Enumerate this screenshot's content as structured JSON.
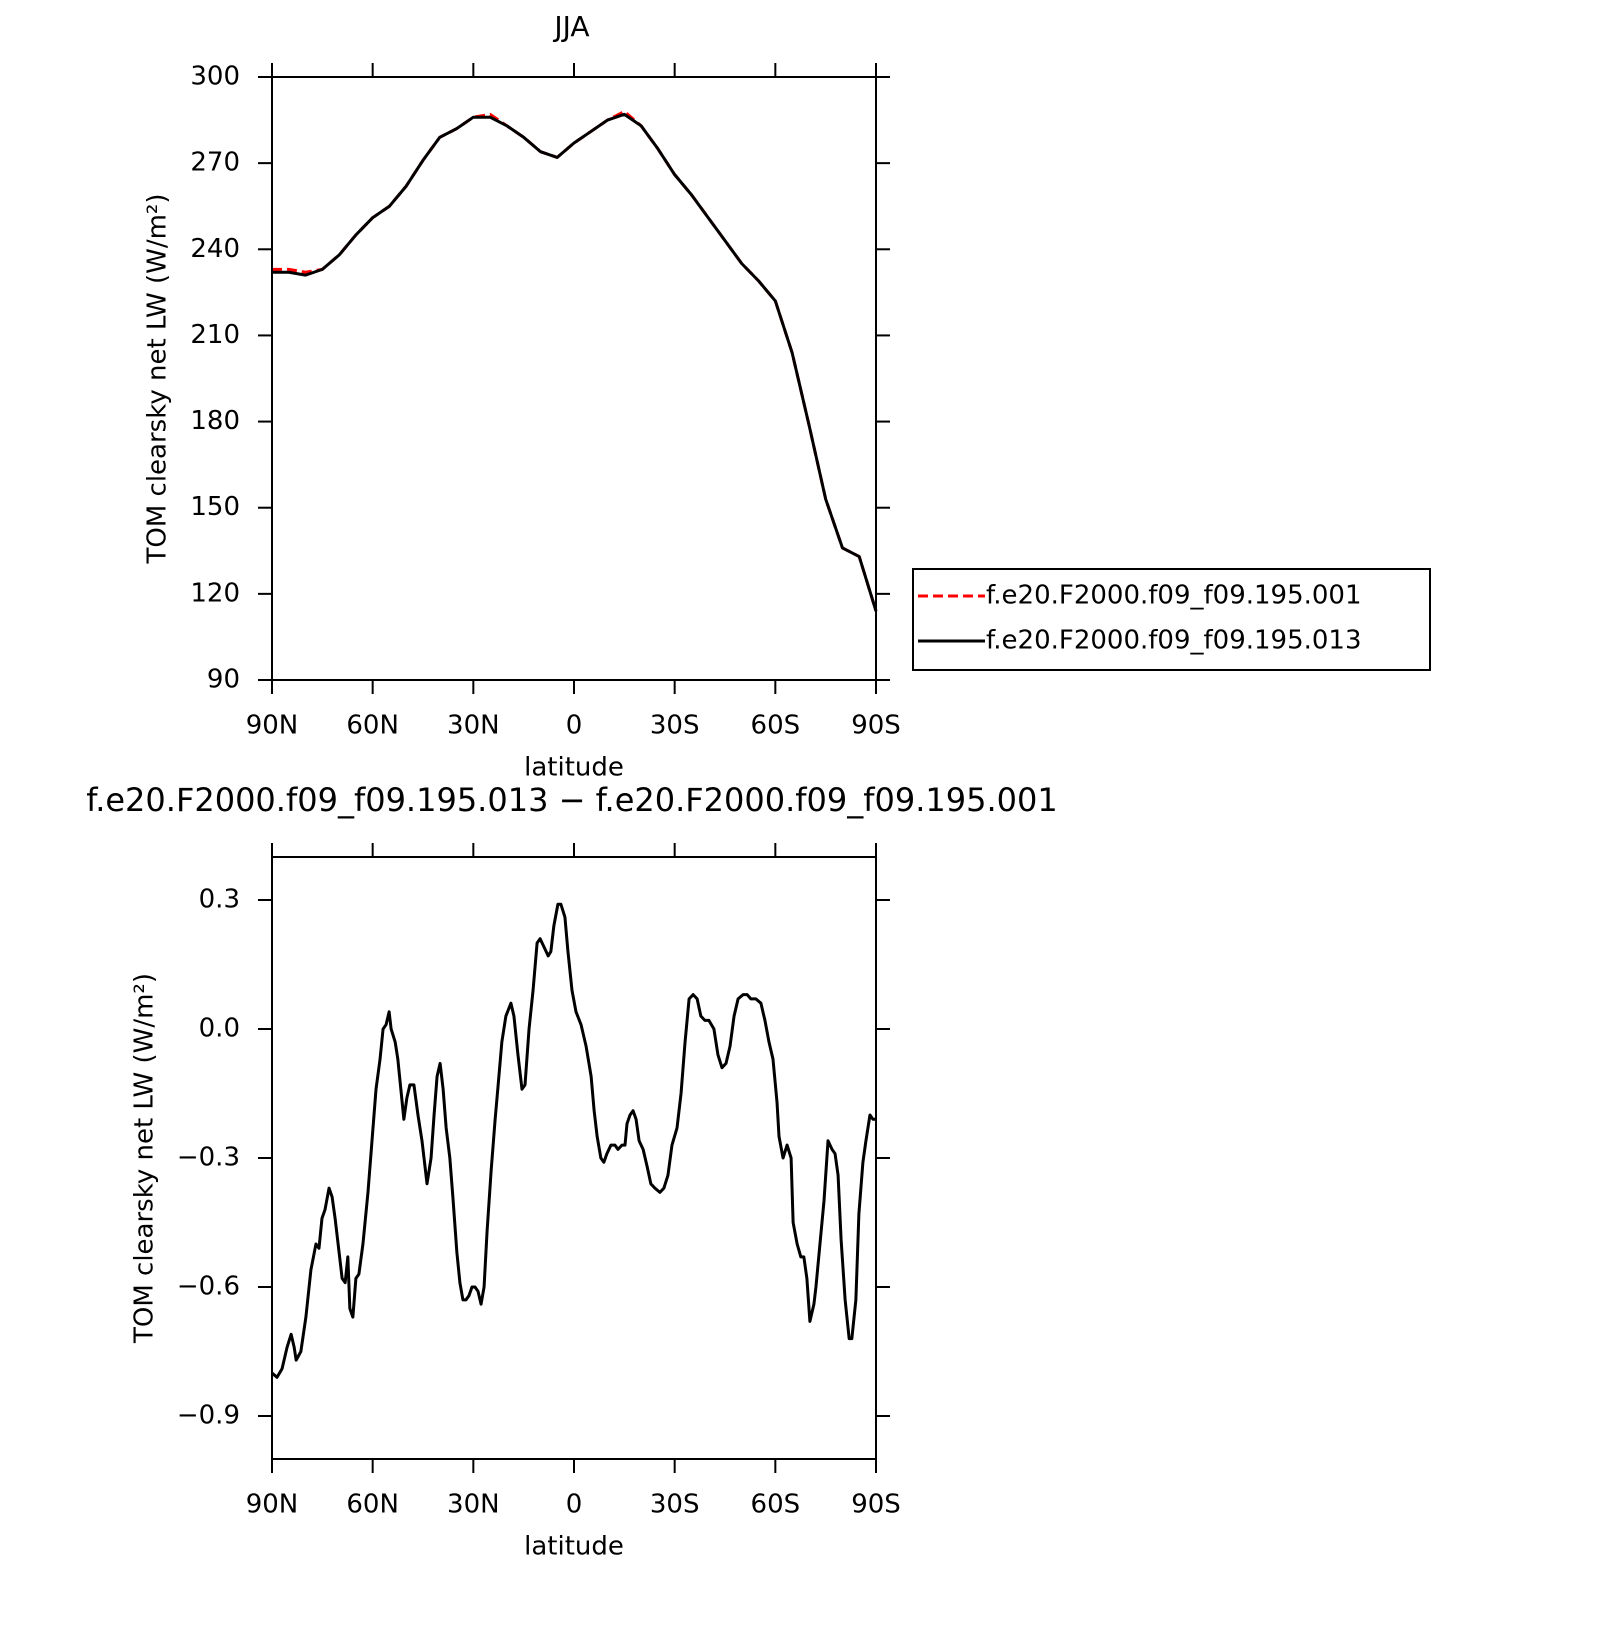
{
  "chart_data": [
    {
      "type": "line",
      "title": "JJA",
      "xlabel": "latitude",
      "ylabel": "TOM clearsky net LW (W/m²)",
      "x": [
        90,
        85,
        80,
        75,
        70,
        65,
        60,
        55,
        50,
        45,
        40,
        35,
        30,
        25,
        20,
        15,
        10,
        5,
        0,
        -5,
        -10,
        -15,
        -20,
        -25,
        -30,
        -35,
        -40,
        -45,
        -50,
        -55,
        -60,
        -65,
        -70,
        -75,
        -80,
        -85,
        -90
      ],
      "series": [
        {
          "name": "f.e20.F2000.f09_f09.195.001",
          "color": "#ff0000",
          "dashed": true,
          "values": [
            233,
            233,
            232,
            233,
            238,
            245,
            251,
            255,
            262,
            271,
            279,
            282,
            286,
            287,
            283,
            279,
            274,
            272,
            277,
            281,
            285,
            288,
            283,
            275,
            266,
            259,
            251,
            243,
            235,
            229,
            222,
            204,
            179,
            153,
            136,
            133,
            114
          ]
        },
        {
          "name": "f.e20.F2000.f09_f09.195.013",
          "color": "#000000",
          "dashed": false,
          "values": [
            232,
            232,
            231,
            233,
            238,
            245,
            251,
            255,
            262,
            271,
            279,
            282,
            286,
            286,
            283,
            279,
            274,
            272,
            277,
            281,
            285,
            287,
            283,
            275,
            266,
            259,
            251,
            243,
            235,
            229,
            222,
            204,
            179,
            153,
            136,
            133,
            114
          ]
        }
      ],
      "xlim": [
        90,
        -90
      ],
      "xticks": [
        {
          "value": 90,
          "label": "90N"
        },
        {
          "value": 60,
          "label": "60N"
        },
        {
          "value": 30,
          "label": "30N"
        },
        0,
        {
          "value": -30,
          "label": "30S"
        },
        {
          "value": -60,
          "label": "60S"
        },
        {
          "value": -90,
          "label": "90S"
        }
      ],
      "ylim": [
        90,
        300
      ],
      "yticks": [
        90,
        120,
        150,
        180,
        210,
        240,
        270,
        300
      ],
      "legend_position": "right"
    },
    {
      "type": "line",
      "title": "f.e20.F2000.f09_f09.195.013 − f.e20.F2000.f09_f09.195.001",
      "xlabel": "latitude",
      "ylabel": "TOM clearsky net LW (W/m²)",
      "x": [
        90,
        88.5,
        87.0,
        85.5,
        84.3,
        83.4,
        82.8,
        81.4,
        79.9,
        78.4,
        76.9,
        76.0,
        75.1,
        74.2,
        73.0,
        72.1,
        71.2,
        70.0,
        69.1,
        68.2,
        67.4,
        66.8,
        65.9,
        65.0,
        64.1,
        62.9,
        61.4,
        60.2,
        59.0,
        57.8,
        56.9,
        56.0,
        55.1,
        54.5,
        53.3,
        52.5,
        51.6,
        50.7,
        49.8,
        48.9,
        47.7,
        46.5,
        45.3,
        43.8,
        42.6,
        41.7,
        40.8,
        39.9,
        39.0,
        38.1,
        37.0,
        36.1,
        34.9,
        34.0,
        33.1,
        32.2,
        31.3,
        30.4,
        29.5,
        28.6,
        27.7,
        26.8,
        25.9,
        24.7,
        23.5,
        22.6,
        21.5,
        20.3,
        18.8,
        17.9,
        16.7,
        15.5,
        14.6,
        13.4,
        12.2,
        11.0,
        10.1,
        8.9,
        7.7,
        6.9,
        6.0,
        4.8,
        3.9,
        2.7,
        1.8,
        0.6,
        -0.6,
        -2.1,
        -3.6,
        -5.1,
        -6.0,
        -6.9,
        -8.0,
        -8.9,
        -9.8,
        -11.0,
        -12.2,
        -13.1,
        -14.3,
        -15.2,
        -15.8,
        -16.7,
        -17.6,
        -18.5,
        -19.4,
        -20.6,
        -21.8,
        -22.9,
        -24.1,
        -25.6,
        -26.8,
        -28.0,
        -29.2,
        -30.7,
        -31.9,
        -33.1,
        -34.3,
        -35.5,
        -36.7,
        -37.8,
        -39.0,
        -40.2,
        -41.7,
        -42.9,
        -44.1,
        -45.3,
        -46.5,
        -47.7,
        -48.9,
        -50.4,
        -51.6,
        -52.7,
        -54.2,
        -55.7,
        -56.9,
        -58.1,
        -59.3,
        -60.5,
        -61.1,
        -62.3,
        -63.5,
        -64.7,
        -65.3,
        -66.5,
        -67.6,
        -68.5,
        -69.4,
        -70.3,
        -71.5,
        -72.1,
        -73.3,
        -74.5,
        -75.7,
        -76.9,
        -77.8,
        -78.7,
        -79.6,
        -80.8,
        -82.0,
        -82.8,
        -84.0,
        -84.9,
        -86.1,
        -87.0,
        -88.2,
        -89.1,
        -90.0
      ],
      "values": [
        -0.8,
        -0.81,
        -0.79,
        -0.74,
        -0.71,
        -0.74,
        -0.77,
        -0.75,
        -0.67,
        -0.56,
        -0.5,
        -0.51,
        -0.44,
        -0.42,
        -0.37,
        -0.39,
        -0.44,
        -0.52,
        -0.58,
        -0.59,
        -0.53,
        -0.65,
        -0.67,
        -0.58,
        -0.57,
        -0.5,
        -0.38,
        -0.26,
        -0.14,
        -0.07,
        0.0,
        0.01,
        0.04,
        0.0,
        -0.03,
        -0.07,
        -0.14,
        -0.21,
        -0.16,
        -0.13,
        -0.13,
        -0.2,
        -0.26,
        -0.36,
        -0.3,
        -0.2,
        -0.11,
        -0.08,
        -0.14,
        -0.23,
        -0.3,
        -0.39,
        -0.52,
        -0.59,
        -0.63,
        -0.63,
        -0.62,
        -0.6,
        -0.6,
        -0.61,
        -0.64,
        -0.6,
        -0.47,
        -0.33,
        -0.21,
        -0.13,
        -0.03,
        0.03,
        0.06,
        0.03,
        -0.06,
        -0.14,
        -0.13,
        0.0,
        0.09,
        0.2,
        0.21,
        0.19,
        0.17,
        0.18,
        0.24,
        0.29,
        0.29,
        0.26,
        0.18,
        0.09,
        0.04,
        0.01,
        -0.04,
        -0.11,
        -0.19,
        -0.25,
        -0.3,
        -0.31,
        -0.29,
        -0.27,
        -0.27,
        -0.28,
        -0.27,
        -0.27,
        -0.22,
        -0.2,
        -0.19,
        -0.21,
        -0.26,
        -0.28,
        -0.32,
        -0.36,
        -0.37,
        -0.38,
        -0.37,
        -0.34,
        -0.27,
        -0.23,
        -0.15,
        -0.03,
        0.07,
        0.08,
        0.07,
        0.03,
        0.02,
        0.02,
        0.0,
        -0.06,
        -0.09,
        -0.08,
        -0.04,
        0.03,
        0.07,
        0.08,
        0.08,
        0.07,
        0.07,
        0.06,
        0.02,
        -0.03,
        -0.07,
        -0.17,
        -0.25,
        -0.3,
        -0.27,
        -0.3,
        -0.45,
        -0.5,
        -0.53,
        -0.53,
        -0.58,
        -0.68,
        -0.64,
        -0.6,
        -0.5,
        -0.4,
        -0.26,
        -0.28,
        -0.29,
        -0.34,
        -0.49,
        -0.63,
        -0.72,
        -0.72,
        -0.63,
        -0.43,
        -0.31,
        -0.26,
        -0.2,
        -0.21,
        -0.21
      ],
      "color": "#000000",
      "xlim": [
        90,
        -90
      ],
      "xticks": [
        {
          "value": 90,
          "label": "90N"
        },
        {
          "value": 60,
          "label": "60N"
        },
        {
          "value": 30,
          "label": "30N"
        },
        0,
        {
          "value": -30,
          "label": "30S"
        },
        {
          "value": -60,
          "label": "60S"
        },
        {
          "value": -90,
          "label": "90S"
        }
      ],
      "ylim": [
        -1.0,
        0.4
      ],
      "yticks": [
        {
          "value": -0.9,
          "label": "−0.9"
        },
        {
          "value": -0.6,
          "label": "−0.6"
        },
        {
          "value": -0.3,
          "label": "−0.3"
        },
        {
          "value": 0,
          "label": "0.0"
        },
        0.3
      ]
    }
  ]
}
